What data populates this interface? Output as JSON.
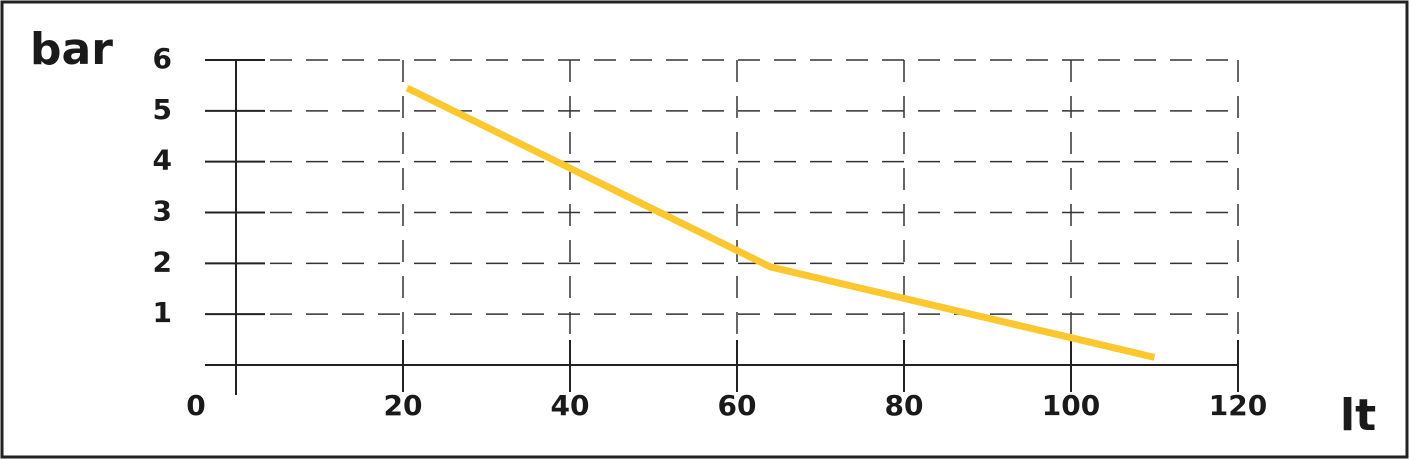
{
  "chart_data": {
    "type": "line",
    "x_label": "lt",
    "y_label": "bar",
    "series": [
      {
        "color": "#fdc82f",
        "x": [
          20.5,
          64,
          110
        ],
        "values": [
          5.45,
          1.93,
          0.15
        ]
      }
    ],
    "xlim": [
      0,
      120
    ],
    "xticks": [
      0,
      20,
      40,
      60,
      80,
      100,
      120
    ],
    "ylim": [
      0,
      6
    ],
    "yticks": [
      1,
      2,
      3,
      4,
      5,
      6
    ],
    "grid": true
  }
}
